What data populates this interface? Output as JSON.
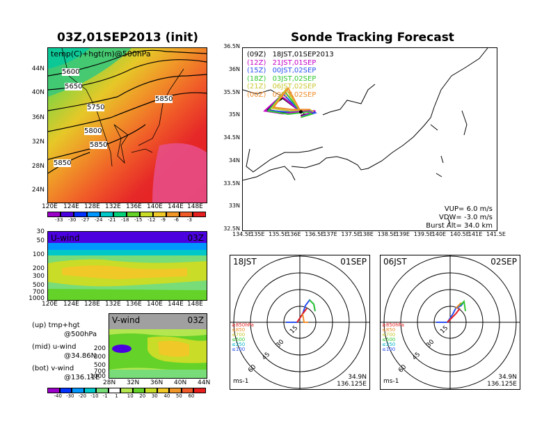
{
  "left": {
    "title": "03Z,01SEP2013 (init)",
    "map_label": "temp(C)+hgt(m)@500hPa",
    "lat_ticks": [
      "44N",
      "40N",
      "36N",
      "32N",
      "28N",
      "24N"
    ],
    "lon_ticks": [
      "120E",
      "124E",
      "128E",
      "132E",
      "136E",
      "140E",
      "144E",
      "148E"
    ],
    "contours": [
      "5600",
      "5650",
      "5750",
      "5800",
      "5850",
      "5850",
      "5850"
    ],
    "temp_colorbar": [
      "-33",
      "-30",
      "-27",
      "-24",
      "-21",
      "-18",
      "-15",
      "-12",
      "-9",
      "-6",
      "-3"
    ],
    "temp_colors": [
      "#9a00c8",
      "#4b00e0",
      "#0032ff",
      "#0096ff",
      "#00c8c8",
      "#00d27a",
      "#64d228",
      "#c8dc28",
      "#f0c828",
      "#f09628",
      "#f05a28",
      "#e61e1e"
    ],
    "uwind_label": "U-wind",
    "uwind_time": "03Z",
    "uwind_pressure_ticks": [
      "30",
      "50",
      "100",
      "200",
      "300",
      "500",
      "700",
      "1000"
    ],
    "uwind_lon_ticks": [
      "120E",
      "124E",
      "128E",
      "132E",
      "136E",
      "140E",
      "144E",
      "148E"
    ],
    "vwind_label": "V-wind",
    "vwind_time": "03Z",
    "vwind_pressure_ticks": [
      "200",
      "300",
      "500",
      "700",
      "1000"
    ],
    "vwind_lat_ticks": [
      "28N",
      "32N",
      "36N",
      "40N",
      "44N"
    ],
    "legend_up": "(up) tmp+hgt",
    "legend_up2": "@500hPa",
    "legend_mid": "(mid) u-wind",
    "legend_mid2": "@34.86N",
    "legend_bot": "(bot) v-wind",
    "legend_bot2": "@136.11E",
    "wind_colorbar": [
      "-40",
      "-30",
      "-20",
      "-10",
      "-1",
      "1",
      "10",
      "20",
      "30",
      "40",
      "50",
      "60"
    ],
    "wind_colors": [
      "#9a00c8",
      "#0032ff",
      "#0096ff",
      "#00c8c8",
      "#78dc78",
      "#ffffff",
      "#b4e650",
      "#64d228",
      "#c8dc28",
      "#f0c828",
      "#f09628",
      "#f05a28",
      "#e61e1e"
    ]
  },
  "right": {
    "title": "Sonde Tracking Forecast",
    "lat_ticks": [
      "36.5N",
      "36N",
      "35.5N",
      "35N",
      "34.5N",
      "34N",
      "33.5N",
      "33N",
      "32.5N"
    ],
    "lon_ticks": [
      "134.5E",
      "135E",
      "135.5E",
      "136E",
      "136.5E",
      "137E",
      "137.5E",
      "138E",
      "138.5E",
      "139E",
      "139.5E",
      "140E",
      "140.5E",
      "141E",
      "141.5E"
    ],
    "launches": [
      {
        "tag": "(09Z)",
        "text": "18JST,01SEP2013",
        "color": "#000000"
      },
      {
        "tag": "(12Z)",
        "text": "21JST,01SEP",
        "color": "#c800c8"
      },
      {
        "tag": "(15Z)",
        "text": "00JST,02SEP",
        "color": "#2850f0"
      },
      {
        "tag": "(18Z)",
        "text": "03JST,02SEP",
        "color": "#32c832"
      },
      {
        "tag": "(21Z)",
        "text": "06JST,02SEP",
        "color": "#c8c832"
      },
      {
        "tag": "(00Z)",
        "text": "09JST,02SEP",
        "color": "#f08c28"
      }
    ],
    "params": [
      "VUP=  6.0  m/s",
      "VDW= -3.0  m/s",
      "Burst Alt= 34.0  km"
    ],
    "hodo1": {
      "left": "18JST",
      "right": "01SEP",
      "ring_labels": [
        "15",
        "30",
        "45",
        "60"
      ],
      "unit": "ms-1",
      "lat": "34.9N",
      "lon": "136.125E"
    },
    "hodo2": {
      "left": "06JST",
      "right": "02SEP",
      "ring_labels": [
        "15",
        "30",
        "45",
        "60"
      ],
      "unit": "ms-1",
      "lat": "34.9N",
      "lon": "136.125E"
    },
    "hodo_levels": [
      {
        "text": "≥850hPa",
        "color": "#e61e1e"
      },
      {
        "text": "≤850",
        "color": "#f08c28"
      },
      {
        "text": "≤700",
        "color": "#c8c832"
      },
      {
        "text": "≤500",
        "color": "#32c832"
      },
      {
        "text": "≤250",
        "color": "#00b4c8"
      },
      {
        "text": "≤100",
        "color": "#2850f0"
      }
    ]
  },
  "chart_data": [
    {
      "type": "heatmap",
      "title": "03Z,01SEP2013 (init)",
      "annotation": "temp(C)+hgt(m)@500hPa",
      "x_ticks": [
        "120E",
        "124E",
        "128E",
        "132E",
        "136E",
        "140E",
        "144E",
        "148E"
      ],
      "y_ticks": [
        "24N",
        "28N",
        "32N",
        "36N",
        "40N",
        "44N"
      ],
      "contour_labels": [
        5600,
        5650,
        5750,
        5800,
        5850,
        5850,
        5850
      ],
      "colorbar_values": [
        -33,
        -30,
        -27,
        -24,
        -21,
        -18,
        -15,
        -12,
        -9,
        -6,
        -3
      ]
    },
    {
      "type": "heatmap",
      "title": "U-wind",
      "x_ticks": [
        "120E",
        "124E",
        "128E",
        "132E",
        "136E",
        "140E",
        "144E",
        "148E"
      ],
      "y_ticks": [
        30,
        50,
        100,
        200,
        300,
        500,
        700,
        1000
      ]
    },
    {
      "type": "heatmap",
      "title": "V-wind",
      "x_ticks": [
        "28N",
        "32N",
        "36N",
        "40N",
        "44N"
      ],
      "y_ticks": [
        200,
        300,
        500,
        700,
        1000
      ],
      "colorbar_values": [
        -40,
        -30,
        -20,
        -10,
        -1,
        1,
        10,
        20,
        30,
        40,
        50,
        60
      ]
    },
    {
      "type": "line",
      "title": "Sonde Tracking Forecast",
      "xlim": [
        134.5,
        141.5
      ],
      "ylim": [
        32.5,
        36.5
      ],
      "series": [
        {
          "name": "(09Z) 18JST,01SEP2013",
          "x": [
            136.1,
            135.6,
            135.15,
            135.7,
            136.25,
            136.5,
            136.1
          ],
          "y": [
            35.1,
            35.4,
            35.15,
            35.08,
            35.13,
            35.1,
            35.02
          ]
        },
        {
          "name": "(12Z) 21JST,01SEP",
          "x": [
            136.1,
            135.55,
            135.1,
            135.6,
            136.2,
            136.5,
            136.1
          ],
          "y": [
            35.1,
            35.45,
            35.12,
            35.06,
            35.12,
            35.12,
            35.0
          ]
        },
        {
          "name": "(15Z) 00JST,02SEP",
          "x": [
            136.1,
            135.6,
            135.2,
            135.7,
            136.3,
            136.5,
            136.15
          ],
          "y": [
            35.1,
            35.5,
            35.13,
            35.1,
            35.15,
            35.08,
            35.0
          ]
        },
        {
          "name": "(18Z) 03JST,02SEP",
          "x": [
            136.1,
            135.65,
            135.2,
            135.75,
            136.3,
            136.4,
            136.1
          ],
          "y": [
            35.1,
            35.55,
            35.12,
            35.05,
            35.1,
            35.05,
            34.98
          ]
        },
        {
          "name": "(21Z) 06JST,02SEP",
          "x": [
            136.1,
            135.7,
            135.3,
            135.8,
            136.35,
            136.45
          ],
          "y": [
            35.1,
            35.6,
            35.18,
            35.12,
            35.15,
            35.1
          ]
        },
        {
          "name": "(00Z) 09JST,02SEP",
          "x": [
            136.1,
            135.75,
            135.35,
            135.85,
            136.35
          ],
          "y": [
            35.1,
            35.62,
            35.2,
            35.15,
            35.15
          ]
        }
      ]
    }
  ]
}
